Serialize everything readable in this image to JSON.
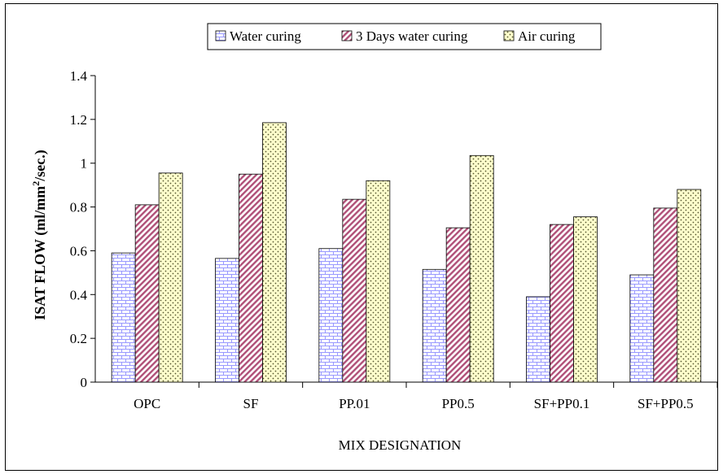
{
  "chart_data": {
    "type": "bar",
    "title": "",
    "xlabel": "MIX DESIGNATION",
    "ylabel": "ISAT FLOW (ml/mm2/sec.)",
    "ylabel_parts": {
      "main": "ISAT FLOW (ml/mm",
      "sup": "2",
      "tail": "/sec.)"
    },
    "ylim": [
      0,
      1.4
    ],
    "yticks": [
      0,
      0.2,
      0.4,
      0.6,
      0.8,
      1,
      1.2,
      1.4
    ],
    "ytick_labels": [
      "0",
      "0.2",
      "0.4",
      "0.6",
      "0.8",
      "1",
      "1.2",
      "1.4"
    ],
    "grid": false,
    "legend_position": "top-center",
    "categories": [
      "OPC",
      "SF",
      "PP.01",
      "PP0.5",
      "SF+PP0.1",
      "SF+PP0.5"
    ],
    "series": [
      {
        "name": "Water curing",
        "values": [
          0.59,
          0.565,
          0.61,
          0.515,
          0.39,
          0.49
        ],
        "color": "#9999ff",
        "pattern": "brick"
      },
      {
        "name": "3 Days water curing",
        "values": [
          0.81,
          0.95,
          0.835,
          0.705,
          0.72,
          0.795
        ],
        "color": "#993366",
        "pattern": "diagonal"
      },
      {
        "name": "Air curing",
        "values": [
          0.955,
          1.185,
          0.92,
          1.035,
          0.755,
          0.88
        ],
        "color": "#ffffcc",
        "pattern": "dots"
      }
    ]
  }
}
